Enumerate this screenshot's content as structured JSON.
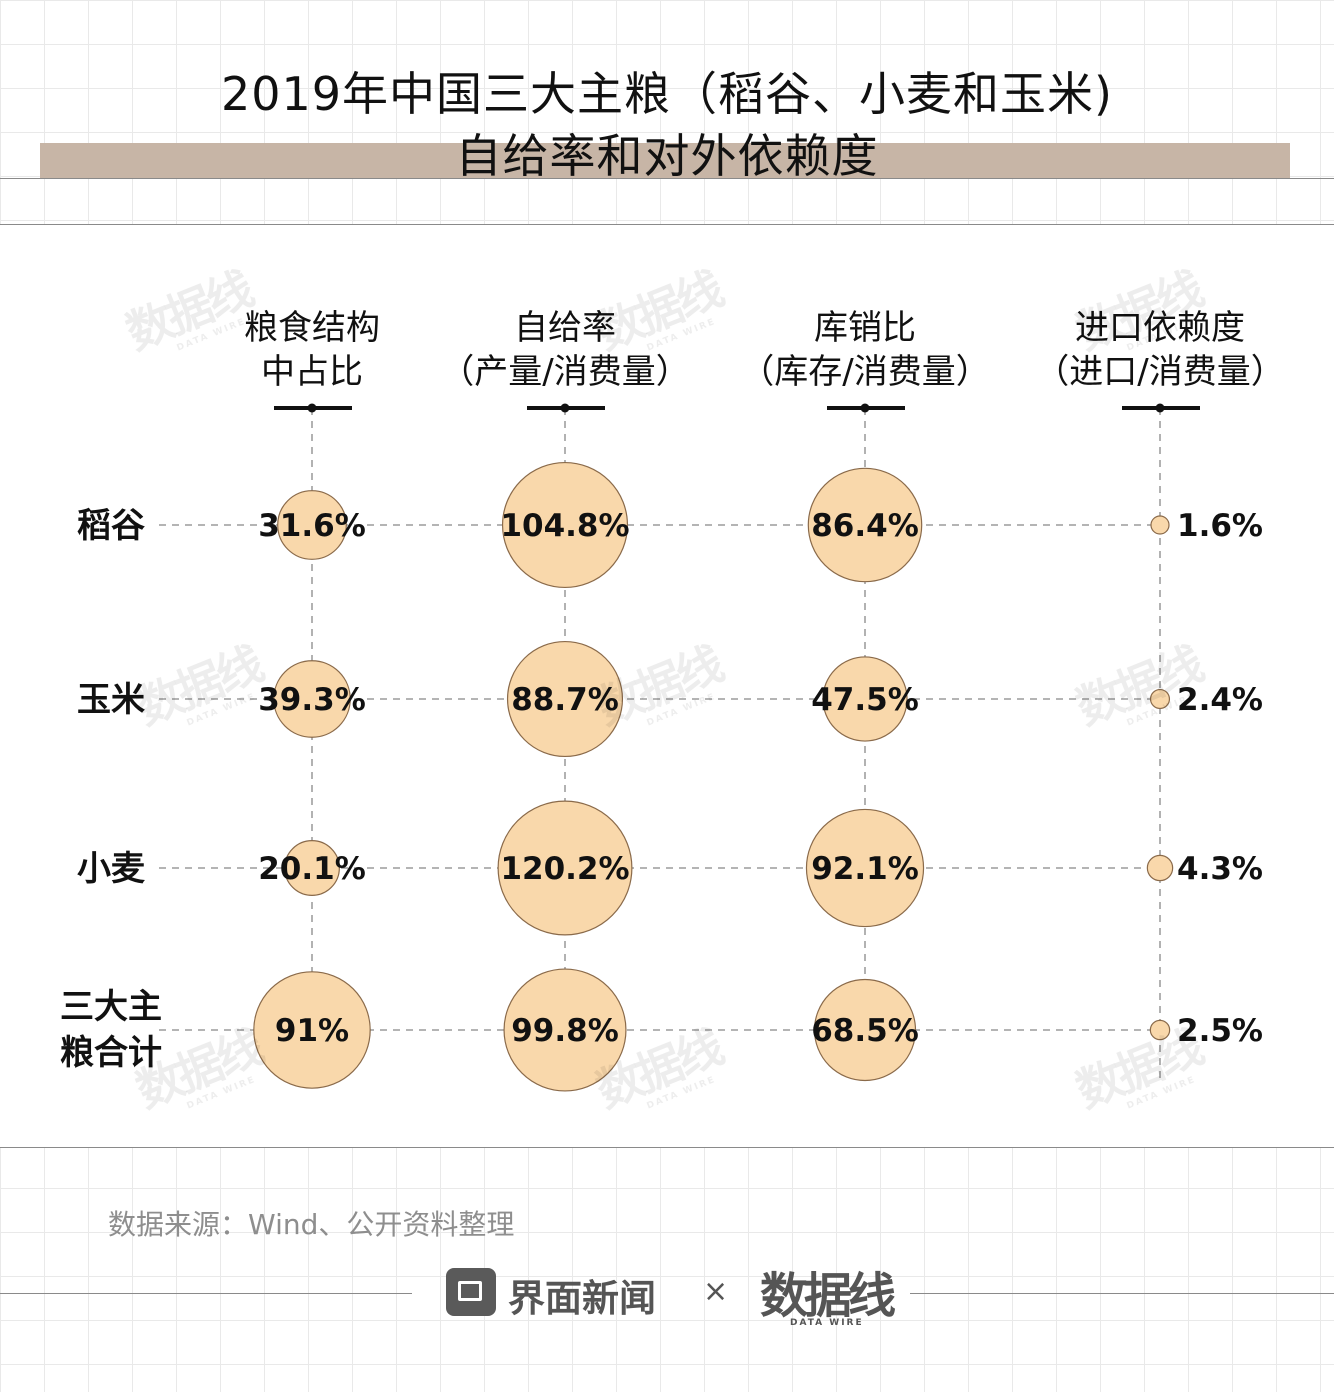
{
  "title": {
    "line1": "2019年中国三大主粮（稻谷、小麦和玉米)",
    "line2": "自给率和对外依赖度"
  },
  "chart_data": {
    "type": "bubble-table",
    "columns": [
      {
        "line1": "粮食结构",
        "line2": "中占比"
      },
      {
        "line1": "自给率",
        "line2": "（产量/消费量）"
      },
      {
        "line1": "库销比",
        "line2": "（库存/消费量）"
      },
      {
        "line1": "进口依赖度",
        "line2": "（进口/消费量）"
      }
    ],
    "rows": [
      {
        "label": [
          "稻谷"
        ],
        "values": [
          31.6,
          104.8,
          86.4,
          1.6
        ],
        "labels": [
          "31.6%",
          "104.8%",
          "86.4%",
          "1.6%"
        ]
      },
      {
        "label": [
          "玉米"
        ],
        "values": [
          39.3,
          88.7,
          47.5,
          2.4
        ],
        "labels": [
          "39.3%",
          "88.7%",
          "47.5%",
          "2.4%"
        ]
      },
      {
        "label": [
          "小麦"
        ],
        "values": [
          20.1,
          120.2,
          92.1,
          4.3
        ],
        "labels": [
          "20.1%",
          "120.2%",
          "92.1%",
          "4.3%"
        ]
      },
      {
        "label": [
          "三大主",
          "粮合计"
        ],
        "values": [
          91,
          99.8,
          68.5,
          2.5
        ],
        "labels": [
          "91%",
          "99.8%",
          "68.5%",
          "2.5%"
        ]
      }
    ],
    "colors": {
      "bubble_fill": "#f9d8ab",
      "bubble_stroke": "#8a6a4a",
      "guide": "#888888",
      "marker": "#111111"
    }
  },
  "source": "数据来源：Wind、公开资料整理",
  "footer": {
    "brand": "界面新闻",
    "times": "×",
    "partner": "数据线",
    "partner_sub": "DATA WIRE"
  },
  "watermark": {
    "text": "数据线",
    "sub": "DATA WIRE"
  }
}
